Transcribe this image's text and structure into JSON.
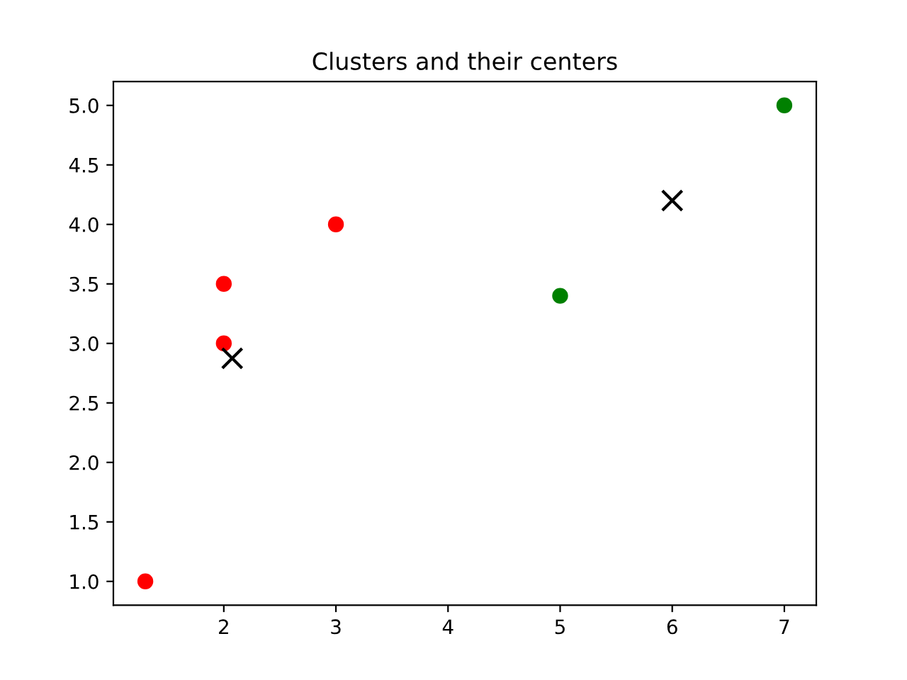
{
  "chart_data": {
    "type": "scatter",
    "title": "Clusters and their centers",
    "series": [
      {
        "color": "#ff0000",
        "marker": "circle",
        "x": [
          1.3,
          2,
          2,
          3
        ],
        "values": [
          1.0,
          3.0,
          3.5,
          4.0
        ]
      },
      {
        "color": "#008000",
        "marker": "circle",
        "x": [
          5,
          7
        ],
        "values": [
          3.4,
          5.0
        ]
      },
      {
        "color": "#000000",
        "marker": "cross",
        "x": [
          2.075,
          6
        ],
        "values": [
          2.875,
          4.2
        ]
      }
    ],
    "xlim": [
      1.015,
      7.285
    ],
    "ylim": [
      0.8,
      5.2
    ],
    "xticks": [
      2,
      3,
      4,
      5,
      6,
      7
    ],
    "yticks": [
      {
        "value": 1.0,
        "label": "1.0"
      },
      {
        "value": 1.5,
        "label": "1.5"
      },
      {
        "value": 2.0,
        "label": "2.0"
      },
      {
        "value": 2.5,
        "label": "2.5"
      },
      {
        "value": 3.0,
        "label": "3.0"
      },
      {
        "value": 3.5,
        "label": "3.5"
      },
      {
        "value": 4.0,
        "label": "4.0"
      },
      {
        "value": 4.5,
        "label": "4.5"
      },
      {
        "value": 5.0,
        "label": "5.0"
      }
    ],
    "grid": false
  }
}
